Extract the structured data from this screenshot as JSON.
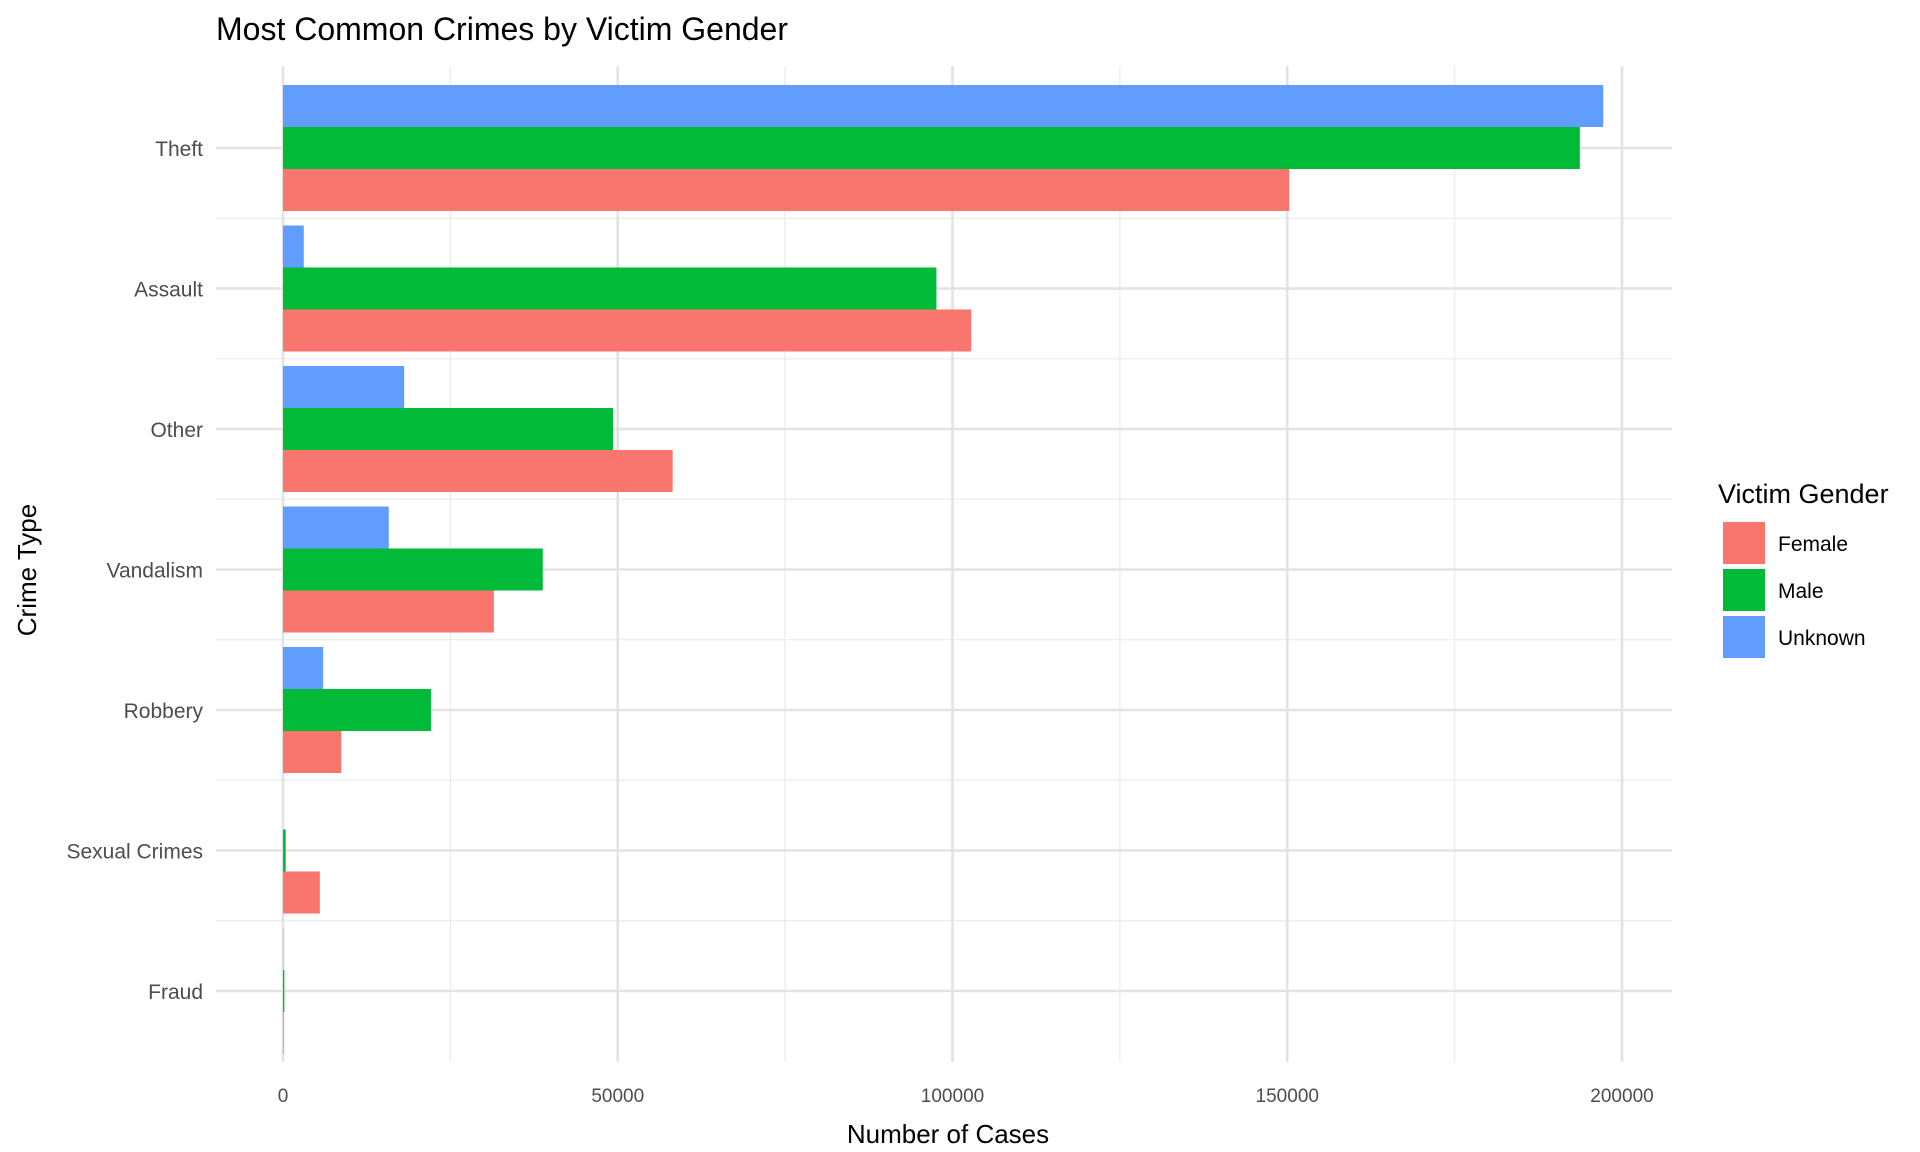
{
  "chart_data": {
    "type": "bar",
    "orientation": "horizontal",
    "title": "Most Common Crimes by Victim Gender",
    "xlabel": "Number of Cases",
    "ylabel": "Crime Type",
    "categories": [
      "Fraud",
      "Sexual Crimes",
      "Robbery",
      "Vandalism",
      "Other",
      "Assault",
      "Theft"
    ],
    "series": [
      {
        "name": "Female",
        "color": "#F8766D",
        "values": [
          100,
          5500,
          8700,
          31500,
          58200,
          102800,
          150300
        ]
      },
      {
        "name": "Male",
        "color": "#00BA38",
        "values": [
          200,
          400,
          22100,
          38800,
          49300,
          97600,
          193700
        ]
      },
      {
        "name": "Unknown",
        "color": "#619CFF",
        "values": [
          50,
          0,
          6000,
          15800,
          18100,
          3100,
          197200
        ]
      }
    ],
    "xlim": [
      -10000,
      207000
    ],
    "xticks": [
      0,
      50000,
      100000,
      150000,
      200000
    ],
    "xtick_labels": [
      "0",
      "50000",
      "100000",
      "150000",
      "200000"
    ],
    "legend": {
      "title": "Victim Gender",
      "position": "right"
    },
    "grid": true
  }
}
